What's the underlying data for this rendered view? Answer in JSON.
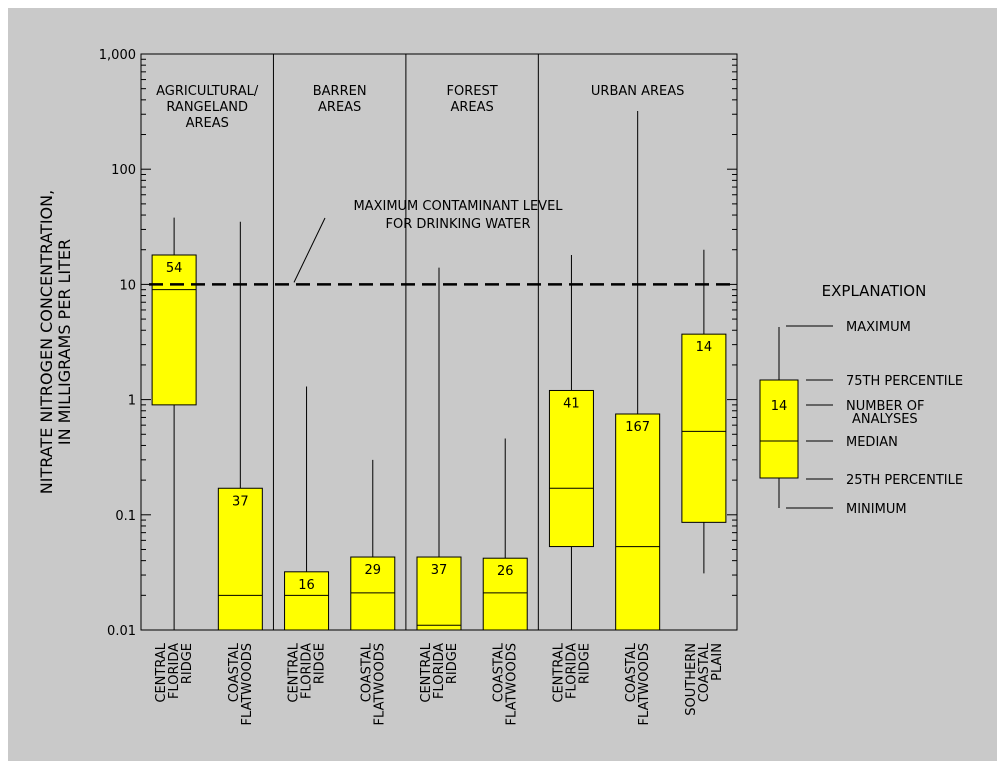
{
  "chart_data": {
    "type": "box",
    "ylabel_lines": [
      "NITRATE NITROGEN CONCENTRATION,",
      "IN MILLIGRAMS PER LITER"
    ],
    "yscale": "log",
    "ylim": [
      0.01,
      1000
    ],
    "yticks": [
      {
        "value": 1000,
        "label": "1,000"
      },
      {
        "value": 100,
        "label": "100"
      },
      {
        "value": 10,
        "label": "10"
      },
      {
        "value": 1,
        "label": "1"
      },
      {
        "value": 0.1,
        "label": "0.1"
      },
      {
        "value": 0.01,
        "label": "0.01"
      }
    ],
    "groups": [
      {
        "lines": [
          "AGRICULTURAL/",
          "RANGELAND",
          "AREAS"
        ],
        "span": [
          0,
          1
        ]
      },
      {
        "lines": [
          "BARREN",
          "AREAS"
        ],
        "span": [
          2,
          3
        ]
      },
      {
        "lines": [
          "FOREST",
          "AREAS"
        ],
        "span": [
          4,
          5
        ]
      },
      {
        "lines": [
          "URBAN AREAS"
        ],
        "span": [
          6,
          8
        ]
      }
    ],
    "boxes": [
      {
        "category_lines": [
          "CENTRAL",
          "FLORIDA",
          "RIDGE"
        ],
        "min": 0.01,
        "q1": 0.9,
        "median": 9,
        "q3": 18,
        "max": 38,
        "n": "54"
      },
      {
        "category_lines": [
          "COASTAL",
          "FLATWOODS"
        ],
        "min": 0.01,
        "q1": 0.01,
        "median": 0.02,
        "q3": 0.17,
        "max": 35,
        "n": "37"
      },
      {
        "category_lines": [
          "CENTRAL",
          "FLORIDA",
          "RIDGE"
        ],
        "min": 0.01,
        "q1": 0.01,
        "median": 0.02,
        "q3": 0.032,
        "max": 1.3,
        "n": "16"
      },
      {
        "category_lines": [
          "COASTAL",
          "FLATWOODS"
        ],
        "min": 0.01,
        "q1": 0.01,
        "median": 0.021,
        "q3": 0.043,
        "max": 0.3,
        "n": "29"
      },
      {
        "category_lines": [
          "CENTRAL",
          "FLORIDA",
          "RIDGE"
        ],
        "min": 0.01,
        "q1": 0.01,
        "median": 0.011,
        "q3": 0.043,
        "max": 14,
        "n": "37"
      },
      {
        "category_lines": [
          "COASTAL",
          "FLATWOODS"
        ],
        "min": 0.01,
        "q1": 0.01,
        "median": 0.021,
        "q3": 0.042,
        "max": 0.46,
        "n": "26"
      },
      {
        "category_lines": [
          "CENTRAL",
          "FLORIDA",
          "RIDGE"
        ],
        "min": 0.01,
        "q1": 0.053,
        "median": 0.17,
        "q3": 1.2,
        "max": 18,
        "n": "41"
      },
      {
        "category_lines": [
          "COASTAL",
          "FLATWOODS"
        ],
        "min": 0.01,
        "q1": 0.01,
        "median": 0.053,
        "q3": 0.75,
        "max": 320,
        "n": "167"
      },
      {
        "category_lines": [
          "SOUTHERN",
          "COASTAL",
          "PLAIN"
        ],
        "min": 0.031,
        "q1": 0.086,
        "median": 0.53,
        "q3": 3.7,
        "max": 20,
        "n": "14"
      }
    ],
    "reference_line": {
      "value": 10,
      "lines": [
        "MAXIMUM CONTAMINANT LEVEL",
        "FOR DRINKING WATER"
      ]
    },
    "explanation": {
      "title": "EXPLANATION",
      "n": "14",
      "items": [
        "MAXIMUM",
        "75TH PERCENTILE",
        "NUMBER OF",
        "ANALYSES",
        "MEDIAN",
        "25TH PERCENTILE",
        "MINIMUM"
      ]
    },
    "colors": {
      "box_fill": "#ffff00",
      "background": "#c9c9c9",
      "ink": "#000000"
    }
  }
}
